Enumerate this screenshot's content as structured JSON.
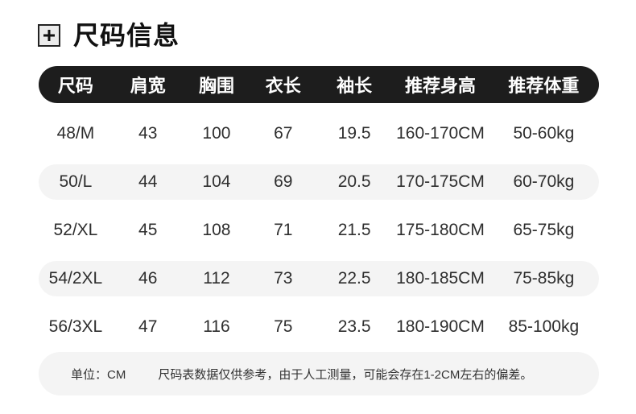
{
  "header": {
    "title": "尺码信息",
    "icon": "plus-box-icon"
  },
  "colors": {
    "table_header_bg": "#1d1d1d",
    "table_header_text": "#ffffff",
    "row_alt_bg": "#f4f4f4",
    "note_bg": "#f4f4f4",
    "title_text": "#111111",
    "cell_text": "#2e2e2e"
  },
  "table": {
    "columns": [
      "尺码",
      "肩宽",
      "胸围",
      "衣长",
      "袖长",
      "推荐身高",
      "推荐体重"
    ],
    "rows": [
      {
        "cells": [
          "48/M",
          "43",
          "100",
          "67",
          "19.5",
          "160-170CM",
          "50-60kg"
        ]
      },
      {
        "cells": [
          "50/L",
          "44",
          "104",
          "69",
          "20.5",
          "170-175CM",
          "60-70kg"
        ]
      },
      {
        "cells": [
          "52/XL",
          "45",
          "108",
          "71",
          "21.5",
          "175-180CM",
          "65-75kg"
        ]
      },
      {
        "cells": [
          "54/2XL",
          "46",
          "112",
          "73",
          "22.5",
          "180-185CM",
          "75-85kg"
        ]
      },
      {
        "cells": [
          "56/3XL",
          "47",
          "116",
          "75",
          "23.5",
          "180-190CM",
          "85-100kg"
        ]
      }
    ]
  },
  "note": {
    "unit_label": "单位：CM",
    "text": "尺码表数据仅供参考，由于人工测量，可能会存在1-2CM左右的偏差。"
  }
}
